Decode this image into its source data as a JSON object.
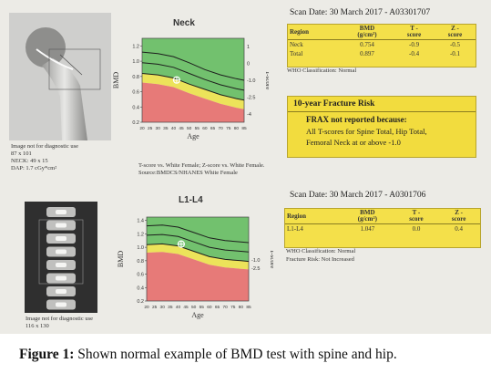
{
  "neck": {
    "chart_title": "Neck",
    "image_note": "Image not for diagnostic use",
    "image_size": "87 x 101",
    "neck_size": "NECK: 49 x 15",
    "dap": "DAP: 1.7 cGy*cm²",
    "chart_data": {
      "type": "line",
      "title": "Neck",
      "xlabel": "Age",
      "ylabel": "BMD",
      "y2label": "T-score",
      "xticks": [
        "20",
        "25",
        "30",
        "35",
        "40",
        "45",
        "50",
        "55",
        "60",
        "65",
        "70",
        "75",
        "80",
        "85"
      ],
      "yticks": [
        "1.2",
        "1.0",
        "0.8",
        "0.6",
        "0.4",
        "0.2"
      ],
      "t_ticks": [
        "1",
        "0",
        "-1.0",
        "-2.5",
        "-4"
      ],
      "xlim": [
        20,
        85
      ],
      "ylim": [
        0.2,
        1.3
      ],
      "zones": [
        {
          "name": "normal",
          "color": "#72c16e"
        },
        {
          "name": "osteopenia",
          "color": "#ece35a"
        },
        {
          "name": "osteoporosis",
          "color": "#e77a78"
        }
      ],
      "reference_curves": {
        "x": [
          20,
          30,
          40,
          50,
          60,
          70,
          80,
          85
        ],
        "upper": [
          1.12,
          1.1,
          1.06,
          0.98,
          0.89,
          0.82,
          0.77,
          0.75
        ],
        "middle": [
          0.98,
          0.96,
          0.92,
          0.84,
          0.76,
          0.69,
          0.64,
          0.62
        ],
        "lower": [
          0.84,
          0.82,
          0.78,
          0.7,
          0.63,
          0.56,
          0.51,
          0.49
        ]
      },
      "point": {
        "x": 42,
        "y": 0.754
      }
    },
    "source_note": "T-score vs. White Female; Z-score vs. White Female. Source:BMDCS/NHANES White Female",
    "scan_date": "Scan Date: 30 March 2017 - A03301707",
    "table": {
      "headers": [
        "Region",
        "BMD\n(g/cm²)",
        "T -\nscore",
        "Z -\nscore"
      ],
      "rows": [
        [
          "Neck",
          "0.754",
          "-0.9",
          "-0.5"
        ],
        [
          "Total",
          "0.897",
          "-0.4",
          "-0.1"
        ]
      ]
    },
    "who": "WHO Classification: Normal"
  },
  "fracture_risk": {
    "title": "10-year Fracture Risk",
    "line1": "FRAX not reported because:",
    "line2": "All T-scores for Spine Total, Hip Total,",
    "line3": "Femoral Neck at or above -1.0"
  },
  "spine": {
    "chart_title": "L1-L4",
    "image_note": "Image not for diagnostic use",
    "image_size": "116 x 130",
    "chart_data": {
      "type": "line",
      "title": "L1-L4",
      "xlabel": "Age",
      "ylabel": "BMD",
      "y2label": "T-score",
      "xticks": [
        "20",
        "25",
        "30",
        "35",
        "40",
        "45",
        "50",
        "55",
        "60",
        "65",
        "70",
        "75",
        "80",
        "85"
      ],
      "yticks": [
        "1.4",
        "1.2",
        "1.0",
        "0.8",
        "0.6",
        "0.4",
        "0.2"
      ],
      "t_ticks": [
        "-1.0",
        "-2.5"
      ],
      "xlim": [
        20,
        85
      ],
      "ylim": [
        0.2,
        1.45
      ],
      "zones": [
        {
          "name": "normal",
          "color": "#72c16e"
        },
        {
          "name": "osteopenia",
          "color": "#ece35a"
        },
        {
          "name": "osteoporosis",
          "color": "#e77a78"
        }
      ],
      "reference_curves": {
        "x": [
          20,
          30,
          40,
          50,
          60,
          70,
          80,
          85
        ],
        "upper": [
          1.32,
          1.33,
          1.3,
          1.22,
          1.14,
          1.1,
          1.08,
          1.07
        ],
        "middle": [
          1.18,
          1.19,
          1.16,
          1.08,
          1.0,
          0.96,
          0.94,
          0.93
        ],
        "lower": [
          1.04,
          1.05,
          1.02,
          0.94,
          0.86,
          0.82,
          0.8,
          0.79
        ]
      },
      "point": {
        "x": 42,
        "y": 1.047
      }
    },
    "scan_date": "Scan Date: 30 March 2017 - A0301706",
    "table": {
      "headers": [
        "Region",
        "BMD\n(g/cm²)",
        "T -\nscore",
        "Z -\nscore"
      ],
      "rows": [
        [
          "L1-L4",
          "1.047",
          "0.0",
          "0.4"
        ]
      ]
    },
    "who": "WHO Classification: Normal",
    "fracture": "Fracture Risk: Not Increased"
  },
  "caption": {
    "label": "Figure 1:",
    "text": " Shown normal example of BMD test with spine and hip."
  }
}
